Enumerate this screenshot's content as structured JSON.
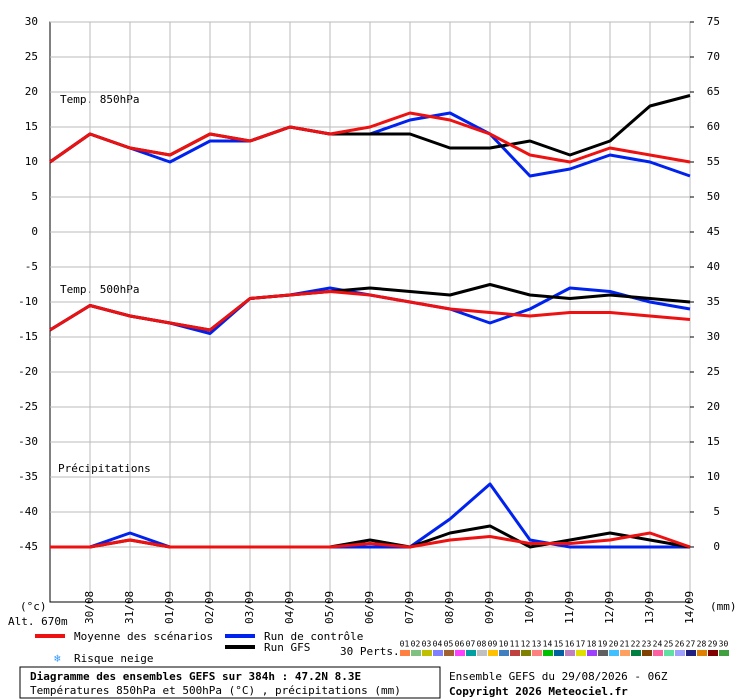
{
  "chart_data": [
    {
      "type": "line",
      "label": "Temp. 850hPa",
      "xlim": [
        0,
        384
      ],
      "ylim": [
        0,
        30
      ],
      "yticks": [
        0,
        5,
        10,
        15,
        20,
        25,
        30
      ],
      "y2lim": [
        45,
        75
      ],
      "y2ticks": [
        45,
        50,
        55,
        60,
        65,
        70,
        75
      ],
      "grid": true,
      "x": [
        0,
        24,
        48,
        72,
        96,
        120,
        144,
        168,
        192,
        216,
        240,
        264,
        288,
        312,
        336,
        360,
        384
      ],
      "series": [
        {
          "name": "Run de contrôle",
          "color": "#0022ee",
          "values": [
            10,
            14,
            12,
            10,
            13,
            13,
            15,
            14,
            14,
            16,
            17,
            14,
            8,
            9,
            11,
            10,
            8
          ]
        },
        {
          "name": "Run GFS",
          "color": "#000000",
          "values": [
            10,
            14,
            12,
            11,
            14,
            13,
            15,
            14,
            14,
            14,
            12,
            12,
            13,
            11,
            13,
            18,
            19.5
          ]
        },
        {
          "name": "Moyenne des scénarios",
          "color": "#ee1111",
          "values": [
            10,
            14,
            12,
            11,
            14,
            13,
            15,
            14,
            15,
            17,
            16,
            14,
            11,
            10,
            12,
            11,
            10
          ]
        }
      ]
    },
    {
      "type": "line",
      "label": "Temp. 500hPa",
      "label2": "Précipitations",
      "xlim": [
        0,
        384
      ],
      "ylim": [
        -52.86,
        0
      ],
      "yticks": [
        -45,
        -40,
        -35,
        -30,
        -25,
        -20,
        -15,
        -10,
        -5
      ],
      "y2lim": [
        -7.86,
        45
      ],
      "y2ticks": [
        0,
        5,
        10,
        15,
        20,
        25,
        30,
        35,
        40
      ],
      "grid": true,
      "x": [
        0,
        24,
        48,
        72,
        96,
        120,
        144,
        168,
        192,
        216,
        240,
        264,
        288,
        312,
        336,
        360,
        384
      ],
      "xticks": [
        {
          "value": 24,
          "label": "30/08"
        },
        {
          "value": 48,
          "label": "31/08"
        },
        {
          "value": 72,
          "label": "01/09"
        },
        {
          "value": 96,
          "label": "02/09"
        },
        {
          "value": 120,
          "label": "03/09"
        },
        {
          "value": 144,
          "label": "04/09"
        },
        {
          "value": 168,
          "label": "05/09"
        },
        {
          "value": 192,
          "label": "06/09"
        },
        {
          "value": 216,
          "label": "07/09"
        },
        {
          "value": 240,
          "label": "08/09"
        },
        {
          "value": 264,
          "label": "09/09"
        },
        {
          "value": 288,
          "label": "10/09"
        },
        {
          "value": 312,
          "label": "11/09"
        },
        {
          "value": 336,
          "label": "12/09"
        },
        {
          "value": 360,
          "label": "13/09"
        },
        {
          "value": 384,
          "label": "14/09"
        }
      ],
      "series": [
        {
          "color": "#0022ee",
          "values": [
            -14,
            -10.5,
            -12,
            -13,
            -14.5,
            -9.5,
            -9,
            -8,
            -9,
            -10,
            -11,
            -13,
            -11,
            -8,
            -8.5,
            -10,
            -11
          ]
        },
        {
          "color": "#000000",
          "values": [
            -14,
            -10.5,
            -12,
            -13,
            -14,
            -9.5,
            -9,
            -8.5,
            -8,
            -8.5,
            -9,
            -7.5,
            -9,
            -9.5,
            -9,
            -9.5,
            -10
          ]
        },
        {
          "color": "#ee1111",
          "values": [
            -14,
            -10.5,
            -12,
            -13,
            -14,
            -9.5,
            -9,
            -8.5,
            -9,
            -10,
            -11,
            -11.5,
            -12,
            -11.5,
            -11.5,
            -12,
            -12.5
          ]
        },
        {
          "color": "#0022ee",
          "axis": "y2",
          "values": [
            0,
            0,
            2,
            0,
            0,
            0,
            0,
            0,
            0,
            0,
            4,
            9,
            1,
            0,
            0,
            0,
            0
          ]
        },
        {
          "color": "#000000",
          "axis": "y2",
          "values": [
            0,
            0,
            1,
            0,
            0,
            0,
            0,
            0,
            1,
            0,
            2,
            3,
            0,
            1,
            2,
            1,
            0
          ]
        },
        {
          "color": "#ee1111",
          "axis": "y2",
          "values": [
            0,
            0,
            1,
            0,
            0,
            0,
            0,
            0,
            0.5,
            0,
            1,
            1.5,
            0.5,
            0.5,
            1,
            2,
            0
          ]
        }
      ]
    }
  ],
  "axis_units": {
    "left": "(°c)",
    "right": "(mm)"
  },
  "altitude": "Alt. 670m",
  "snow": "Risque neige",
  "perturbations": {
    "label": "30 Perts.",
    "members": [
      {
        "name": "01",
        "color": "#ff8040"
      },
      {
        "name": "02",
        "color": "#80c080"
      },
      {
        "name": "03",
        "color": "#c0c000"
      },
      {
        "name": "04",
        "color": "#8080ff"
      },
      {
        "name": "05",
        "color": "#a06030"
      },
      {
        "name": "06",
        "color": "#ff40ff"
      },
      {
        "name": "07",
        "color": "#00a0a0"
      },
      {
        "name": "08",
        "color": "#c0c0c0"
      },
      {
        "name": "09",
        "color": "#ffc000"
      },
      {
        "name": "10",
        "color": "#4080c0"
      },
      {
        "name": "11",
        "color": "#c04040"
      },
      {
        "name": "12",
        "color": "#808000"
      },
      {
        "name": "13",
        "color": "#ff8080"
      },
      {
        "name": "14",
        "color": "#00c000"
      },
      {
        "name": "15",
        "color": "#0060a0"
      },
      {
        "name": "16",
        "color": "#c080c0"
      },
      {
        "name": "17",
        "color": "#e0e000"
      },
      {
        "name": "18",
        "color": "#a040ff"
      },
      {
        "name": "19",
        "color": "#606060"
      },
      {
        "name": "20",
        "color": "#40c0ff"
      },
      {
        "name": "21",
        "color": "#ffa060"
      },
      {
        "name": "22",
        "color": "#008040"
      },
      {
        "name": "23",
        "color": "#804000"
      },
      {
        "name": "24",
        "color": "#ff60a0"
      },
      {
        "name": "25",
        "color": "#60e0a0"
      },
      {
        "name": "26",
        "color": "#a0a0ff"
      },
      {
        "name": "27",
        "color": "#202080"
      },
      {
        "name": "28",
        "color": "#e08000"
      },
      {
        "name": "29",
        "color": "#800000"
      },
      {
        "name": "30",
        "color": "#40a040"
      }
    ]
  },
  "footer": {
    "title": "Diagramme des ensembles GEFS sur 384h : 47.2N 8.3E",
    "subtitle": "Températures 850hPa et 500hPa (°C) , précipitations (mm)",
    "run": "Ensemble GEFS du 29/08/2026 - 06Z",
    "copyright": "Copyright 2026 Meteociel.fr"
  }
}
